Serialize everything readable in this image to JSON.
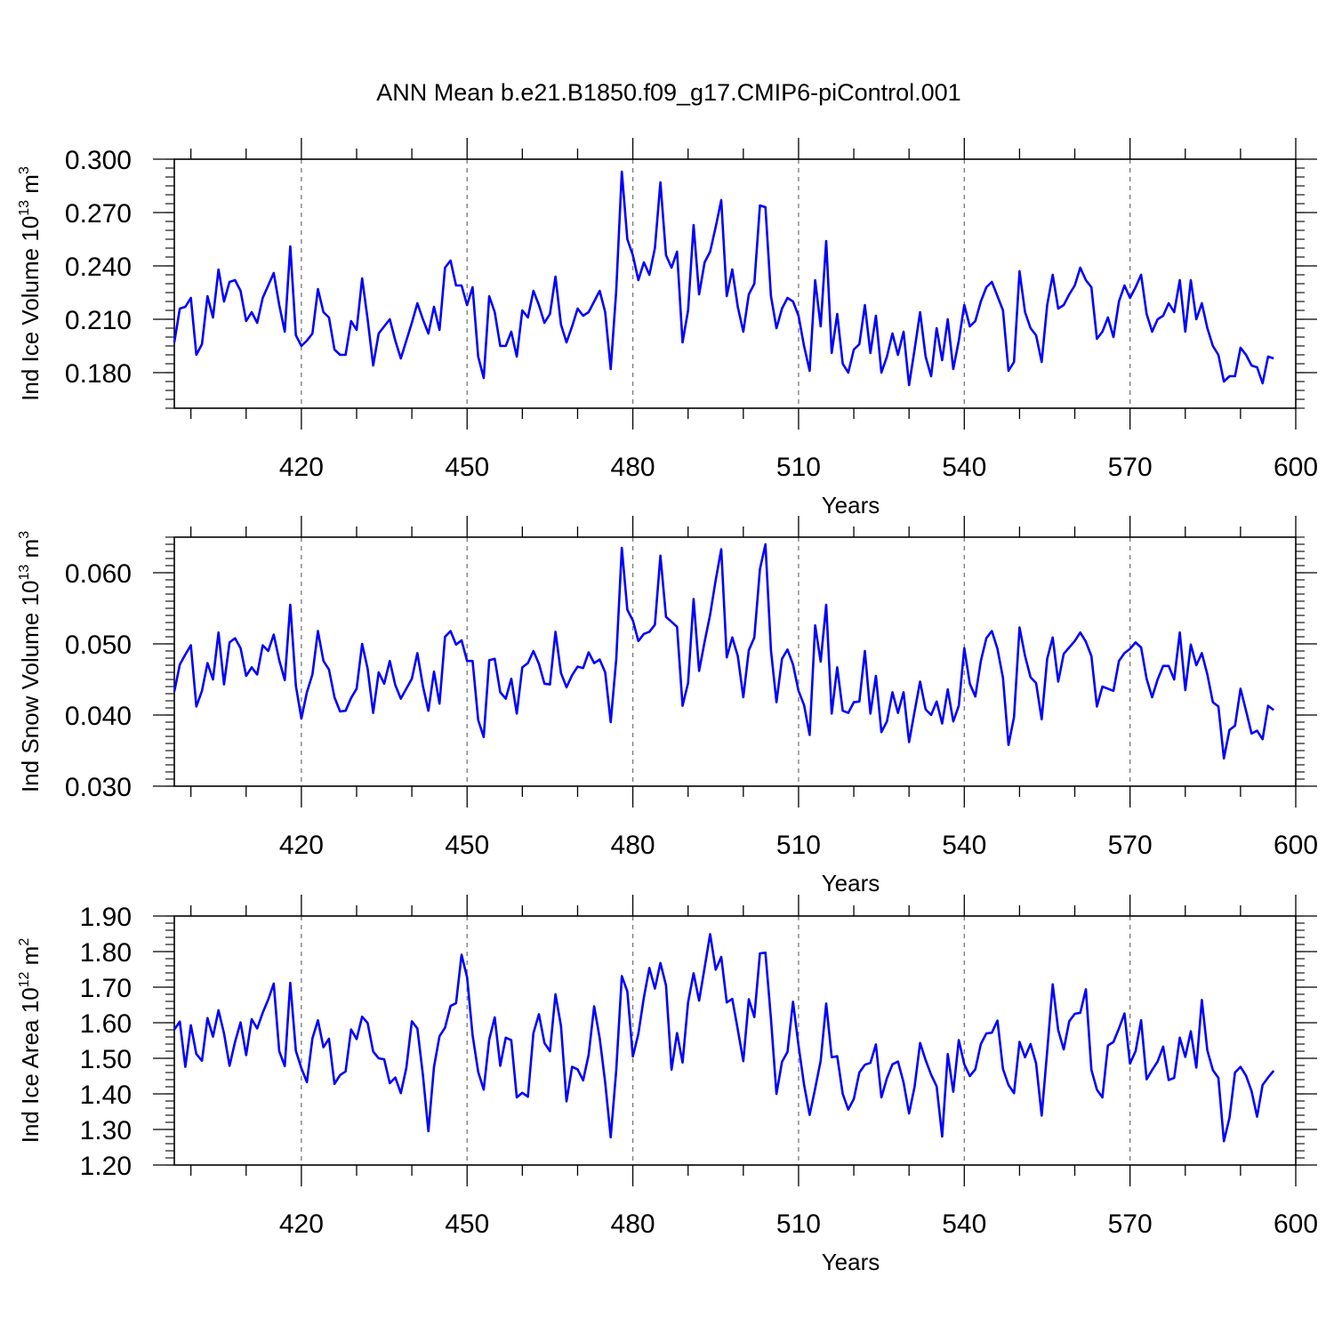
{
  "title": "ANN Mean b.e21.B1850.f09_g17.CMIP6-piControl.001",
  "colors": {
    "line": "#0000ff",
    "axis": "#000000",
    "grid": "#777777"
  },
  "chart_data": [
    {
      "type": "line",
      "ylabel": {
        "pre": "Ind Ice Volume 10",
        "sup": "13",
        "mid": " m",
        "sup2": "3"
      },
      "xlabel": "Years",
      "xlim": [
        397,
        600
      ],
      "ylim": [
        0.16,
        0.3
      ],
      "xticks": [
        "420",
        "450",
        "480",
        "510",
        "540",
        "570",
        "600"
      ],
      "yticks": [
        "0.180",
        "0.210",
        "0.240",
        "0.270",
        "0.300"
      ],
      "grid": "vertical dashed at major x ticks",
      "series": [
        {
          "x0": 397,
          "values": [
            0.197,
            0.216,
            0.217,
            0.222,
            0.19,
            0.196,
            0.223,
            0.211,
            0.238,
            0.22,
            0.231,
            0.232,
            0.226,
            0.209,
            0.214,
            0.208,
            0.222,
            0.229,
            0.236,
            0.218,
            0.203,
            0.251,
            0.201,
            0.195,
            0.198,
            0.202,
            0.227,
            0.214,
            0.211,
            0.193,
            0.19,
            0.19,
            0.209,
            0.204,
            0.233,
            0.21,
            0.184,
            0.202,
            0.206,
            0.21,
            0.198,
            0.188,
            0.198,
            0.208,
            0.219,
            0.21,
            0.202,
            0.217,
            0.204,
            0.239,
            0.243,
            0.229,
            0.229,
            0.218,
            0.228,
            0.189,
            0.177,
            0.223,
            0.214,
            0.195,
            0.195,
            0.203,
            0.189,
            0.215,
            0.211,
            0.226,
            0.218,
            0.208,
            0.213,
            0.234,
            0.207,
            0.197,
            0.206,
            0.216,
            0.212,
            0.214,
            0.22,
            0.226,
            0.214,
            0.182,
            0.226,
            0.293,
            0.255,
            0.246,
            0.232,
            0.242,
            0.235,
            0.25,
            0.287,
            0.246,
            0.239,
            0.248,
            0.197,
            0.215,
            0.263,
            0.224,
            0.242,
            0.248,
            0.262,
            0.277,
            0.223,
            0.238,
            0.217,
            0.203,
            0.224,
            0.23,
            0.274,
            0.273,
            0.223,
            0.205,
            0.216,
            0.222,
            0.22,
            0.212,
            0.195,
            0.181,
            0.232,
            0.206,
            0.254,
            0.191,
            0.213,
            0.185,
            0.18,
            0.193,
            0.196,
            0.218,
            0.191,
            0.212,
            0.18,
            0.189,
            0.202,
            0.19,
            0.203,
            0.173,
            0.193,
            0.214,
            0.189,
            0.178,
            0.205,
            0.187,
            0.21,
            0.182,
            0.198,
            0.218,
            0.206,
            0.209,
            0.22,
            0.228,
            0.231,
            0.223,
            0.215,
            0.181,
            0.186,
            0.237,
            0.214,
            0.205,
            0.201,
            0.186,
            0.218,
            0.235,
            0.216,
            0.218,
            0.224,
            0.229,
            0.239,
            0.232,
            0.228,
            0.199,
            0.203,
            0.211,
            0.2,
            0.22,
            0.229,
            0.222,
            0.228,
            0.235,
            0.213,
            0.203,
            0.21,
            0.212,
            0.219,
            0.214,
            0.232,
            0.203,
            0.232,
            0.21,
            0.219,
            0.205,
            0.195,
            0.19,
            0.175,
            0.178,
            0.178,
            0.194,
            0.19,
            0.184,
            0.183,
            0.174,
            0.189,
            0.188
          ]
        }
      ]
    },
    {
      "type": "line",
      "ylabel": {
        "pre": "Ind Snow Volume 10",
        "sup": "13",
        "mid": " m",
        "sup2": "3"
      },
      "xlabel": "Years",
      "xlim": [
        397,
        600
      ],
      "ylim": [
        0.03,
        0.065
      ],
      "xticks": [
        "420",
        "450",
        "480",
        "510",
        "540",
        "570",
        "600"
      ],
      "yticks": [
        "0.030",
        "0.040",
        "0.050",
        "0.060"
      ],
      "grid": "vertical dashed at major x ticks",
      "series": [
        {
          "x0": 397,
          "values": [
            0.0433,
            0.0471,
            0.0485,
            0.0498,
            0.0412,
            0.0434,
            0.0473,
            0.045,
            0.0516,
            0.0443,
            0.0502,
            0.0508,
            0.0494,
            0.0455,
            0.0467,
            0.0457,
            0.0498,
            0.049,
            0.0513,
            0.0477,
            0.0449,
            0.0555,
            0.0441,
            0.0395,
            0.0432,
            0.0457,
            0.0518,
            0.0476,
            0.0464,
            0.0425,
            0.0405,
            0.0406,
            0.0424,
            0.0437,
            0.05,
            0.0465,
            0.0403,
            0.046,
            0.0444,
            0.0476,
            0.0442,
            0.0423,
            0.0437,
            0.0451,
            0.0487,
            0.0441,
            0.0406,
            0.0461,
            0.0416,
            0.051,
            0.0518,
            0.0499,
            0.0505,
            0.0476,
            0.0476,
            0.0393,
            0.0369,
            0.0477,
            0.0479,
            0.0432,
            0.0423,
            0.0451,
            0.0402,
            0.0467,
            0.0473,
            0.049,
            0.0472,
            0.0444,
            0.0443,
            0.0517,
            0.0459,
            0.0439,
            0.0456,
            0.0468,
            0.0466,
            0.0488,
            0.0473,
            0.0478,
            0.046,
            0.039,
            0.0478,
            0.0635,
            0.0548,
            0.0533,
            0.0504,
            0.0514,
            0.0517,
            0.0527,
            0.0624,
            0.0538,
            0.0531,
            0.0524,
            0.0413,
            0.0445,
            0.0563,
            0.0462,
            0.0503,
            0.0541,
            0.059,
            0.0633,
            0.0481,
            0.0509,
            0.0483,
            0.0425,
            0.0491,
            0.0509,
            0.0605,
            0.064,
            0.0491,
            0.0418,
            0.0479,
            0.0492,
            0.0471,
            0.0434,
            0.0414,
            0.0372,
            0.0526,
            0.0475,
            0.0555,
            0.0402,
            0.0467,
            0.0406,
            0.0403,
            0.0418,
            0.0419,
            0.049,
            0.0402,
            0.0455,
            0.0376,
            0.0391,
            0.0432,
            0.0403,
            0.0432,
            0.0362,
            0.0405,
            0.0447,
            0.0408,
            0.04,
            0.0419,
            0.0388,
            0.0436,
            0.0391,
            0.0413,
            0.0494,
            0.0444,
            0.0426,
            0.0476,
            0.0508,
            0.0518,
            0.0493,
            0.0452,
            0.0358,
            0.0397,
            0.0523,
            0.0483,
            0.0453,
            0.0445,
            0.0394,
            0.0479,
            0.0509,
            0.0447,
            0.0486,
            0.0495,
            0.0504,
            0.0516,
            0.0503,
            0.0483,
            0.0412,
            0.044,
            0.0437,
            0.0434,
            0.0476,
            0.0487,
            0.0493,
            0.0502,
            0.0495,
            0.0451,
            0.0425,
            0.045,
            0.0469,
            0.0469,
            0.045,
            0.0516,
            0.0435,
            0.0499,
            0.047,
            0.0487,
            0.0457,
            0.0418,
            0.0412,
            0.0339,
            0.0379,
            0.0385,
            0.0437,
            0.0406,
            0.0374,
            0.0378,
            0.0366,
            0.0413,
            0.0407
          ]
        }
      ]
    },
    {
      "type": "line",
      "ylabel": {
        "pre": "Ind Ice Area 10",
        "sup": "12",
        "mid": " m",
        "sup2": "2"
      },
      "xlabel": "Years",
      "xlim": [
        397,
        600
      ],
      "ylim": [
        1.2,
        1.9
      ],
      "xticks": [
        "420",
        "450",
        "480",
        "510",
        "540",
        "570",
        "600"
      ],
      "yticks": [
        "1.20",
        "1.30",
        "1.40",
        "1.50",
        "1.60",
        "1.70",
        "1.80",
        "1.90"
      ],
      "grid": "vertical dashed at major x ticks",
      "series": [
        {
          "x0": 397,
          "values": [
            1.581,
            1.603,
            1.476,
            1.593,
            1.512,
            1.493,
            1.613,
            1.561,
            1.635,
            1.57,
            1.479,
            1.546,
            1.601,
            1.509,
            1.61,
            1.584,
            1.628,
            1.665,
            1.71,
            1.52,
            1.478,
            1.712,
            1.521,
            1.472,
            1.433,
            1.556,
            1.607,
            1.531,
            1.555,
            1.428,
            1.453,
            1.463,
            1.581,
            1.554,
            1.617,
            1.599,
            1.519,
            1.5,
            1.497,
            1.43,
            1.446,
            1.402,
            1.473,
            1.604,
            1.584,
            1.454,
            1.295,
            1.476,
            1.562,
            1.586,
            1.647,
            1.655,
            1.791,
            1.728,
            1.565,
            1.462,
            1.412,
            1.553,
            1.615,
            1.479,
            1.558,
            1.551,
            1.39,
            1.403,
            1.392,
            1.571,
            1.624,
            1.543,
            1.52,
            1.68,
            1.591,
            1.379,
            1.476,
            1.469,
            1.438,
            1.51,
            1.646,
            1.557,
            1.432,
            1.278,
            1.466,
            1.731,
            1.688,
            1.505,
            1.569,
            1.671,
            1.754,
            1.696,
            1.768,
            1.705,
            1.468,
            1.571,
            1.488,
            1.657,
            1.739,
            1.662,
            1.755,
            1.849,
            1.749,
            1.785,
            1.657,
            1.667,
            1.581,
            1.492,
            1.666,
            1.616,
            1.795,
            1.797,
            1.611,
            1.4,
            1.49,
            1.518,
            1.659,
            1.536,
            1.426,
            1.341,
            1.415,
            1.493,
            1.654,
            1.503,
            1.506,
            1.4,
            1.356,
            1.386,
            1.46,
            1.482,
            1.487,
            1.539,
            1.39,
            1.444,
            1.483,
            1.491,
            1.432,
            1.345,
            1.42,
            1.543,
            1.495,
            1.454,
            1.421,
            1.28,
            1.512,
            1.406,
            1.551,
            1.483,
            1.45,
            1.469,
            1.54,
            1.57,
            1.572,
            1.606,
            1.47,
            1.425,
            1.402,
            1.546,
            1.503,
            1.54,
            1.486,
            1.339,
            1.52,
            1.708,
            1.579,
            1.525,
            1.604,
            1.625,
            1.628,
            1.694,
            1.468,
            1.412,
            1.39,
            1.536,
            1.546,
            1.584,
            1.626,
            1.485,
            1.52,
            1.607,
            1.441,
            1.467,
            1.491,
            1.533,
            1.439,
            1.445,
            1.558,
            1.504,
            1.576,
            1.474,
            1.664,
            1.522,
            1.467,
            1.445,
            1.267,
            1.333,
            1.46,
            1.476,
            1.451,
            1.408,
            1.336,
            1.425,
            1.446,
            1.465
          ]
        }
      ]
    }
  ]
}
